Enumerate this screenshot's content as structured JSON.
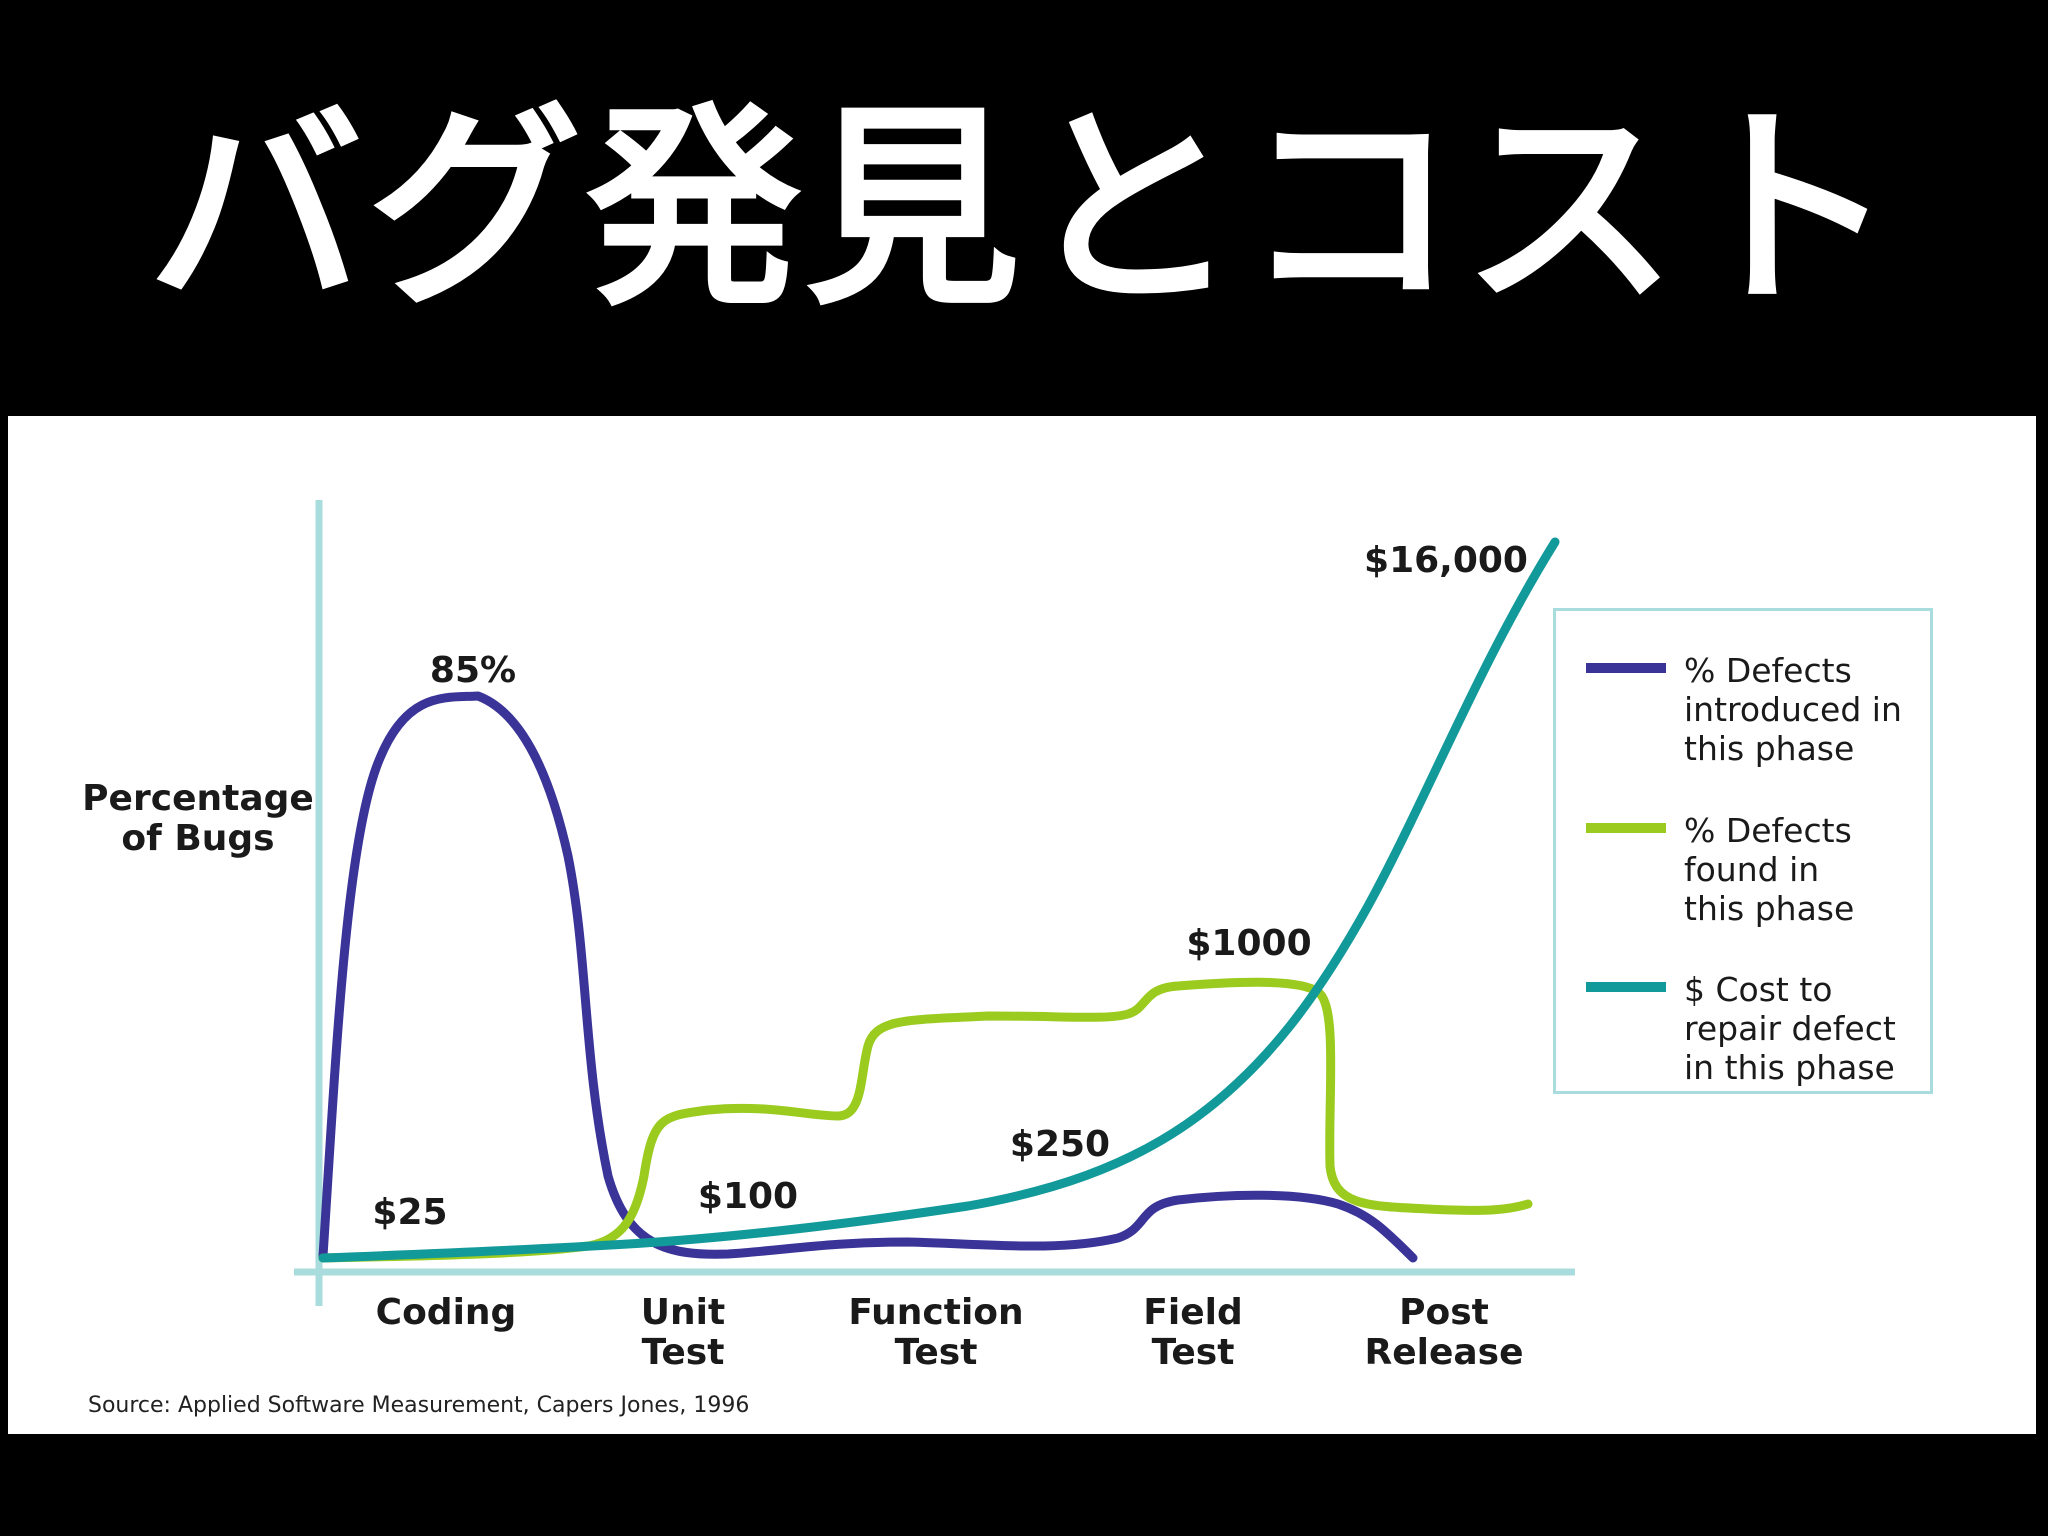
{
  "slide": {
    "title": "バグ発見とコスト",
    "source": "Source: Applied Software Measurement, Capers Jones, 1996"
  },
  "colors": {
    "introduced": "#3a3498",
    "found": "#9acb1e",
    "cost": "#12999a",
    "axis": "#a9dcdc"
  },
  "chart_data": {
    "type": "line",
    "title": "",
    "ylabel": "Percentage\nof Bugs",
    "ylabel_lines": [
      "Percentage",
      "of Bugs"
    ],
    "categories": [
      {
        "lines": [
          "Coding"
        ]
      },
      {
        "lines": [
          "Unit",
          "Test"
        ]
      },
      {
        "lines": [
          "Function",
          "Test"
        ]
      },
      {
        "lines": [
          "Field",
          "Test"
        ]
      },
      {
        "lines": [
          "Post",
          "Release"
        ]
      }
    ],
    "grid": false,
    "legend_position": "right",
    "series": [
      {
        "name": "% Defects introduced in this phase",
        "legend_lines": [
          "% Defects",
          "introduced in",
          "this phase"
        ],
        "color_key": "introduced",
        "values": [
          85,
          2,
          3,
          9,
          0
        ]
      },
      {
        "name": "% Defects found in this phase",
        "legend_lines": [
          "% Defects",
          "found in",
          "this phase"
        ],
        "color_key": "found",
        "values": [
          2,
          20,
          33,
          38,
          9
        ]
      },
      {
        "name": "$ Cost to repair defect in this phase",
        "legend_lines": [
          "$ Cost to",
          "repair defect",
          "in this phase"
        ],
        "color_key": "cost",
        "values": [
          25,
          100,
          250,
          1000,
          16000
        ]
      }
    ],
    "annotations": [
      {
        "text": "85%",
        "series": 0,
        "category": 0
      },
      {
        "text": "$25",
        "series": 2,
        "category": 0
      },
      {
        "text": "$100",
        "series": 2,
        "category": 1
      },
      {
        "text": "$250",
        "series": 2,
        "category": 2
      },
      {
        "text": "$1000",
        "series": 2,
        "category": 3
      },
      {
        "text": "$16,000",
        "series": 2,
        "category": 4
      }
    ]
  }
}
